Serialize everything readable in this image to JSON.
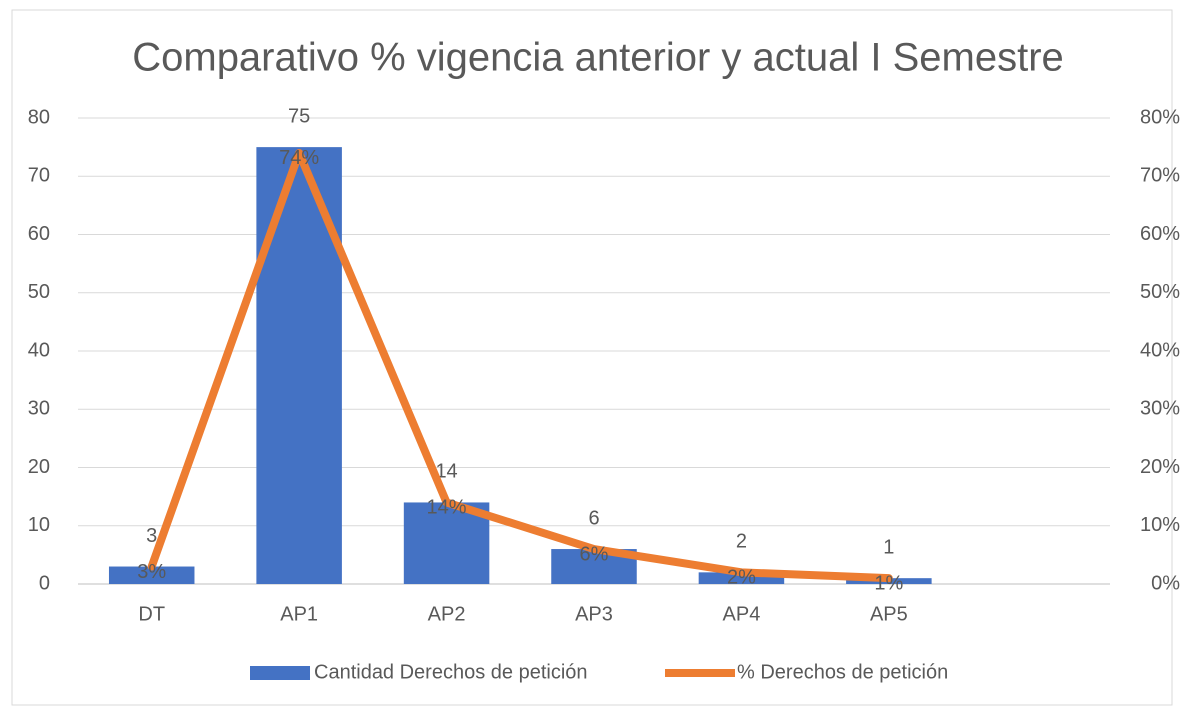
{
  "chart_data": {
    "type": "combo",
    "title": "Comparativo % vigencia anterior y actual I Semestre",
    "categories": [
      "DT",
      "AP1",
      "AP2",
      "AP3",
      "AP4",
      "AP5",
      null
    ],
    "series": [
      {
        "name": "Cantidad Derechos de petición",
        "type": "bar",
        "color": "#4472c4",
        "axis": "y",
        "values": [
          3,
          75,
          14,
          6,
          2,
          1,
          null
        ]
      },
      {
        "name": "% Derechos de petición",
        "type": "line",
        "color": "#ed7d31",
        "axis": "y2",
        "values": [
          3,
          74,
          14,
          6,
          2,
          1,
          null
        ],
        "value_labels": [
          "3%",
          "74%",
          "14%",
          "6%",
          "2%",
          "1%",
          null
        ]
      }
    ],
    "ylim": [
      0,
      80
    ],
    "yticks": [
      0,
      10,
      20,
      30,
      40,
      50,
      60,
      70,
      80
    ],
    "y2lim": [
      0,
      80
    ],
    "y2ticks": [
      {
        "value": 0,
        "label": "0%"
      },
      {
        "value": 10,
        "label": "10%"
      },
      {
        "value": 20,
        "label": "20%"
      },
      {
        "value": 30,
        "label": "30%"
      },
      {
        "value": 40,
        "label": "40%"
      },
      {
        "value": 50,
        "label": "50%"
      },
      {
        "value": 60,
        "label": "60%"
      },
      {
        "value": 70,
        "label": "70%"
      },
      {
        "value": 80,
        "label": "80%"
      }
    ],
    "grid": true,
    "legend": "bottom"
  }
}
